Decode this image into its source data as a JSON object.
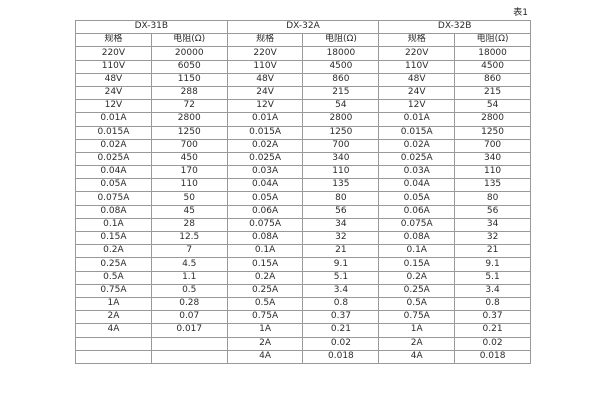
{
  "caption": "表1",
  "spec_header": "规格",
  "resistance_header": "电阻(Ω)",
  "groups": [
    {
      "name": "DX-31B",
      "rows": [
        [
          "220V",
          "20000"
        ],
        [
          "110V",
          "6050"
        ],
        [
          "48V",
          "1150"
        ],
        [
          "24V",
          "288"
        ],
        [
          "12V",
          "72"
        ],
        [
          "0.01A",
          "2800"
        ],
        [
          "0.015A",
          "1250"
        ],
        [
          "0.02A",
          "700"
        ],
        [
          "0.025A",
          "450"
        ],
        [
          "0.04A",
          "170"
        ],
        [
          "0.05A",
          "110"
        ],
        [
          "0.075A",
          "50"
        ],
        [
          "0.08A",
          "45"
        ],
        [
          "0.1A",
          "28"
        ],
        [
          "0.15A",
          "12.5"
        ],
        [
          "0.2A",
          "7"
        ],
        [
          "0.25A",
          "4.5"
        ],
        [
          "0.5A",
          "1.1"
        ],
        [
          "0.75A",
          "0.5"
        ],
        [
          "1A",
          "0.28"
        ],
        [
          "2A",
          "0.07"
        ],
        [
          "4A",
          "0.017"
        ],
        [
          "",
          ""
        ],
        [
          "",
          ""
        ]
      ]
    },
    {
      "name": "DX-32A",
      "rows": [
        [
          "220V",
          "18000"
        ],
        [
          "110V",
          "4500"
        ],
        [
          "48V",
          "860"
        ],
        [
          "24V",
          "215"
        ],
        [
          "12V",
          "54"
        ],
        [
          "0.01A",
          "2800"
        ],
        [
          "0.015A",
          "1250"
        ],
        [
          "0.02A",
          "700"
        ],
        [
          "0.025A",
          "340"
        ],
        [
          "0.03A",
          "110"
        ],
        [
          "0.04A",
          "135"
        ],
        [
          "0.05A",
          "80"
        ],
        [
          "0.06A",
          "56"
        ],
        [
          "0.075A",
          "34"
        ],
        [
          "0.08A",
          "32"
        ],
        [
          "0.1A",
          "21"
        ],
        [
          "0.15A",
          "9.1"
        ],
        [
          "0.2A",
          "5.1"
        ],
        [
          "0.25A",
          "3.4"
        ],
        [
          "0.5A",
          "0.8"
        ],
        [
          "0.75A",
          "0.37"
        ],
        [
          "1A",
          "0.21"
        ],
        [
          "2A",
          "0.02"
        ],
        [
          "4A",
          "0.018"
        ]
      ]
    },
    {
      "name": "DX-32B",
      "rows": [
        [
          "220V",
          "18000"
        ],
        [
          "110V",
          "4500"
        ],
        [
          "48V",
          "860"
        ],
        [
          "24V",
          "215"
        ],
        [
          "12V",
          "54"
        ],
        [
          "0.01A",
          "2800"
        ],
        [
          "0.015A",
          "1250"
        ],
        [
          "0.02A",
          "700"
        ],
        [
          "0.025A",
          "340"
        ],
        [
          "0.03A",
          "110"
        ],
        [
          "0.04A",
          "135"
        ],
        [
          "0.05A",
          "80"
        ],
        [
          "0.06A",
          "56"
        ],
        [
          "0.075A",
          "34"
        ],
        [
          "0.08A",
          "32"
        ],
        [
          "0.1A",
          "21"
        ],
        [
          "0.15A",
          "9.1"
        ],
        [
          "0.2A",
          "5.1"
        ],
        [
          "0.25A",
          "3.4"
        ],
        [
          "0.5A",
          "0.8"
        ],
        [
          "0.75A",
          "0.37"
        ],
        [
          "1A",
          "0.21"
        ],
        [
          "2A",
          "0.02"
        ],
        [
          "4A",
          "0.018"
        ]
      ]
    }
  ]
}
